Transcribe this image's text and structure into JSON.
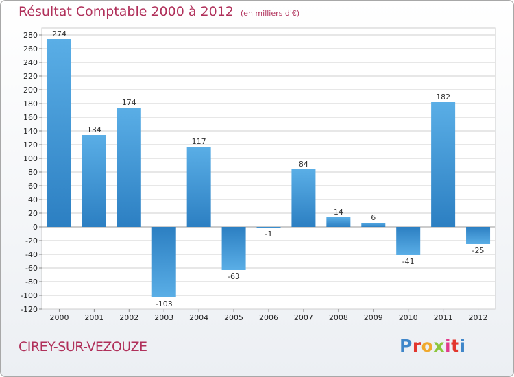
{
  "header": {
    "title": "Résultat Comptable 2000 à 2012",
    "subtitle": "(en milliers d'€)"
  },
  "footer": {
    "city": "CIREY-SUR-VEZOUZE",
    "logo": {
      "letters": [
        "P",
        "r",
        "o",
        "x",
        "i",
        "t",
        "i"
      ],
      "colors": [
        "#3f86c9",
        "#e2362d",
        "#f0a92e",
        "#8cc63e",
        "#e23a8a",
        "#e2362d",
        "#3f86c9"
      ]
    }
  },
  "chart_data": {
    "type": "bar",
    "categories": [
      "2000",
      "2001",
      "2002",
      "2003",
      "2004",
      "2005",
      "2006",
      "2007",
      "2008",
      "2009",
      "2010",
      "2011",
      "2012"
    ],
    "values": [
      274,
      134,
      174,
      -103,
      117,
      -63,
      -1,
      84,
      14,
      6,
      -41,
      182,
      -25
    ],
    "ylim": [
      -120,
      280
    ],
    "yticks": [
      -120,
      -100,
      -80,
      -60,
      -40,
      -20,
      0,
      20,
      40,
      60,
      80,
      100,
      120,
      140,
      160,
      180,
      200,
      220,
      240,
      260,
      280
    ],
    "grid": true,
    "bar_color_light": "#5aaee6",
    "bar_color_dark": "#2c7fc2"
  }
}
